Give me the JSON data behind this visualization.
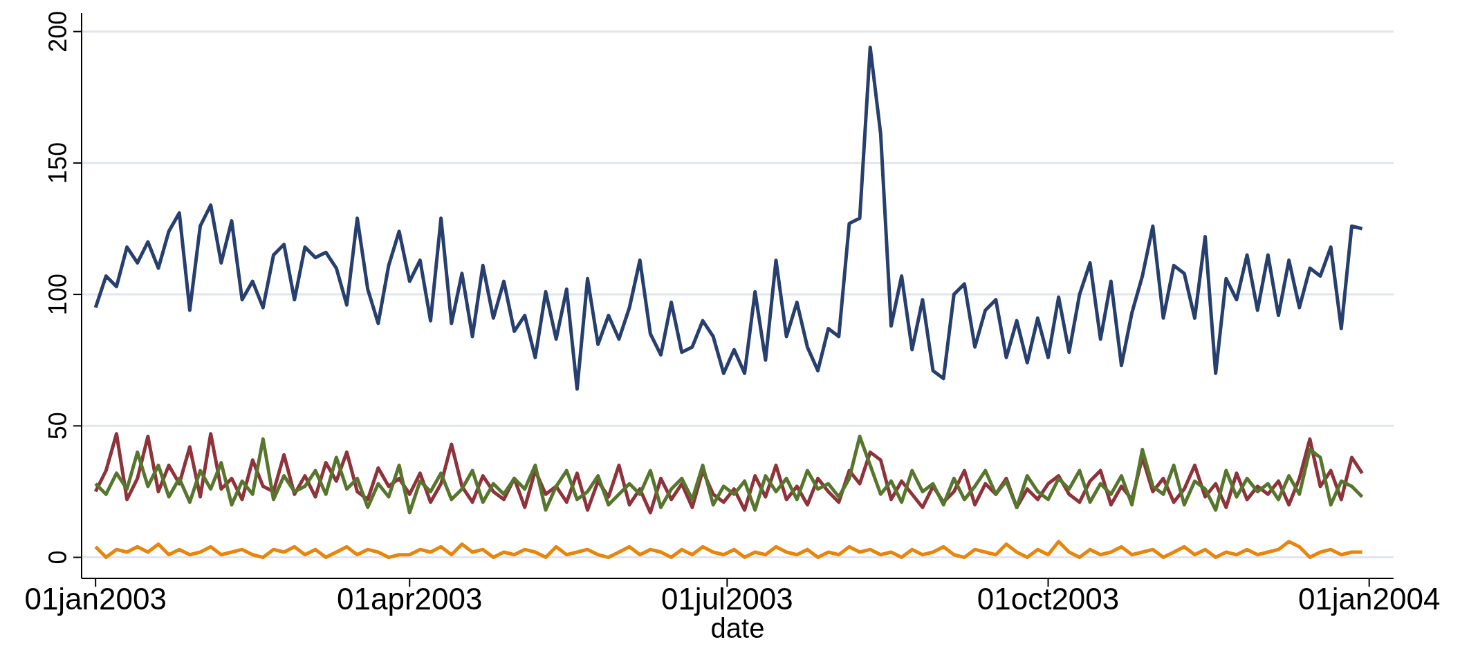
{
  "chart_data": {
    "type": "line",
    "xlabel": "date",
    "grid": "y",
    "marker": "none",
    "line_style": "solid",
    "xlim": [
      "2002-12-28",
      "2004-01-08"
    ],
    "xticks": [
      {
        "value": "2003-01-01",
        "label": "01jan2003"
      },
      {
        "value": "2003-04-01",
        "label": "01apr2003"
      },
      {
        "value": "2003-07-01",
        "label": "01jul2003"
      },
      {
        "value": "2003-10-01",
        "label": "01oct2003"
      },
      {
        "value": "2004-01-01",
        "label": "01jan2004"
      }
    ],
    "ylim": [
      -8,
      207
    ],
    "yticks": [
      0,
      50,
      100,
      150,
      200
    ],
    "x": [
      "2003-01-01",
      "2003-01-04",
      "2003-01-07",
      "2003-01-10",
      "2003-01-13",
      "2003-01-16",
      "2003-01-19",
      "2003-01-22",
      "2003-01-25",
      "2003-01-28",
      "2003-01-31",
      "2003-02-03",
      "2003-02-06",
      "2003-02-09",
      "2003-02-12",
      "2003-02-15",
      "2003-02-18",
      "2003-02-21",
      "2003-02-24",
      "2003-02-27",
      "2003-03-02",
      "2003-03-05",
      "2003-03-08",
      "2003-03-11",
      "2003-03-14",
      "2003-03-17",
      "2003-03-20",
      "2003-03-23",
      "2003-03-26",
      "2003-03-29",
      "2003-04-01",
      "2003-04-04",
      "2003-04-07",
      "2003-04-10",
      "2003-04-13",
      "2003-04-16",
      "2003-04-19",
      "2003-04-22",
      "2003-04-25",
      "2003-04-28",
      "2003-05-01",
      "2003-05-04",
      "2003-05-07",
      "2003-05-10",
      "2003-05-13",
      "2003-05-16",
      "2003-05-19",
      "2003-05-22",
      "2003-05-25",
      "2003-05-28",
      "2003-05-31",
      "2003-06-03",
      "2003-06-06",
      "2003-06-09",
      "2003-06-12",
      "2003-06-15",
      "2003-06-18",
      "2003-06-21",
      "2003-06-24",
      "2003-06-27",
      "2003-06-30",
      "2003-07-03",
      "2003-07-06",
      "2003-07-09",
      "2003-07-12",
      "2003-07-15",
      "2003-07-18",
      "2003-07-21",
      "2003-07-24",
      "2003-07-27",
      "2003-07-30",
      "2003-08-02",
      "2003-08-05",
      "2003-08-08",
      "2003-08-11",
      "2003-08-14",
      "2003-08-17",
      "2003-08-20",
      "2003-08-23",
      "2003-08-26",
      "2003-08-29",
      "2003-09-01",
      "2003-09-04",
      "2003-09-07",
      "2003-09-10",
      "2003-09-13",
      "2003-09-16",
      "2003-09-19",
      "2003-09-22",
      "2003-09-25",
      "2003-09-28",
      "2003-10-01",
      "2003-10-04",
      "2003-10-07",
      "2003-10-10",
      "2003-10-13",
      "2003-10-16",
      "2003-10-19",
      "2003-10-22",
      "2003-10-25",
      "2003-10-28",
      "2003-10-31",
      "2003-11-03",
      "2003-11-06",
      "2003-11-09",
      "2003-11-12",
      "2003-11-15",
      "2003-11-18",
      "2003-11-21",
      "2003-11-24",
      "2003-11-27",
      "2003-11-30",
      "2003-12-03",
      "2003-12-06",
      "2003-12-09",
      "2003-12-12",
      "2003-12-15",
      "2003-12-18",
      "2003-12-21",
      "2003-12-24",
      "2003-12-27",
      "2003-12-30"
    ],
    "series": [
      {
        "color": "#263f6f",
        "values": [
          95,
          107,
          103,
          118,
          112,
          120,
          110,
          124,
          131,
          94,
          126,
          134,
          112,
          128,
          98,
          105,
          95,
          115,
          119,
          98,
          118,
          114,
          116,
          110,
          96,
          129,
          102,
          89,
          111,
          124,
          105,
          113,
          90,
          129,
          89,
          108,
          84,
          111,
          91,
          105,
          86,
          92,
          76,
          101,
          83,
          102,
          64,
          106,
          81,
          92,
          83,
          95,
          113,
          85,
          77,
          97,
          78,
          80,
          90,
          84,
          70,
          79,
          70,
          101,
          75,
          113,
          84,
          97,
          80,
          71,
          87,
          84,
          127,
          129,
          194,
          161,
          88,
          107,
          79,
          98,
          71,
          68,
          100,
          104,
          80,
          94,
          98,
          76,
          90,
          74,
          91,
          76,
          99,
          78,
          100,
          112,
          83,
          105,
          73,
          93,
          107,
          126,
          91,
          111,
          108,
          91,
          122,
          70,
          106,
          98,
          115,
          94,
          115,
          92,
          113,
          95,
          110,
          107,
          118,
          87,
          126,
          125
        ]
      },
      {
        "color": "#8f323a",
        "values": [
          25,
          33,
          47,
          22,
          30,
          46,
          25,
          35,
          28,
          42,
          23,
          47,
          26,
          30,
          22,
          37,
          27,
          25,
          39,
          24,
          31,
          23,
          36,
          29,
          40,
          25,
          22,
          34,
          27,
          30,
          24,
          32,
          21,
          28,
          43,
          27,
          21,
          31,
          25,
          22,
          30,
          19,
          33,
          24,
          27,
          21,
          32,
          18,
          29,
          23,
          35,
          20,
          26,
          17,
          30,
          22,
          28,
          19,
          33,
          24,
          21,
          26,
          18,
          31,
          23,
          35,
          22,
          27,
          20,
          30,
          25,
          21,
          33,
          28,
          40,
          37,
          22,
          29,
          24,
          19,
          27,
          21,
          25,
          33,
          20,
          28,
          24,
          30,
          19,
          26,
          22,
          28,
          31,
          24,
          21,
          29,
          33,
          20,
          27,
          22,
          38,
          25,
          30,
          21,
          26,
          35,
          23,
          28,
          19,
          32,
          22,
          27,
          24,
          29,
          20,
          30,
          45,
          27,
          33,
          22,
          38,
          32
        ]
      },
      {
        "color": "#56762e",
        "values": [
          28,
          24,
          32,
          26,
          40,
          27,
          35,
          23,
          30,
          21,
          33,
          26,
          36,
          20,
          29,
          24,
          45,
          22,
          31,
          25,
          27,
          33,
          24,
          38,
          26,
          30,
          19,
          28,
          23,
          35,
          17,
          29,
          25,
          32,
          22,
          26,
          33,
          21,
          28,
          24,
          30,
          26,
          35,
          18,
          27,
          33,
          22,
          25,
          31,
          20,
          24,
          28,
          24,
          33,
          19,
          26,
          30,
          22,
          35,
          20,
          27,
          24,
          29,
          18,
          31,
          25,
          30,
          22,
          33,
          26,
          28,
          23,
          30,
          46,
          35,
          24,
          29,
          21,
          33,
          25,
          28,
          20,
          30,
          22,
          27,
          33,
          24,
          29,
          19,
          31,
          25,
          22,
          30,
          26,
          33,
          21,
          28,
          24,
          31,
          20,
          41,
          27,
          24,
          35,
          20,
          29,
          26,
          18,
          33,
          23,
          30,
          25,
          28,
          22,
          31,
          24,
          41,
          38,
          20,
          29,
          27,
          23
        ]
      },
      {
        "color": "#e8850c",
        "values": [
          4,
          0,
          3,
          2,
          4,
          2,
          5,
          1,
          3,
          1,
          2,
          4,
          1,
          2,
          3,
          1,
          0,
          3,
          2,
          4,
          1,
          3,
          0,
          2,
          4,
          1,
          3,
          2,
          0,
          1,
          1,
          3,
          2,
          4,
          1,
          5,
          2,
          3,
          0,
          2,
          1,
          3,
          2,
          0,
          4,
          1,
          2,
          3,
          1,
          0,
          2,
          4,
          1,
          3,
          2,
          0,
          3,
          1,
          4,
          2,
          1,
          3,
          0,
          2,
          1,
          4,
          2,
          1,
          3,
          0,
          2,
          1,
          4,
          2,
          3,
          1,
          2,
          0,
          3,
          1,
          2,
          4,
          1,
          0,
          3,
          2,
          1,
          5,
          2,
          0,
          3,
          1,
          6,
          2,
          0,
          3,
          1,
          2,
          4,
          1,
          2,
          3,
          0,
          2,
          4,
          1,
          3,
          0,
          2,
          1,
          3,
          1,
          2,
          3,
          6,
          4,
          0,
          2,
          3,
          1,
          2,
          2
        ]
      }
    ]
  }
}
